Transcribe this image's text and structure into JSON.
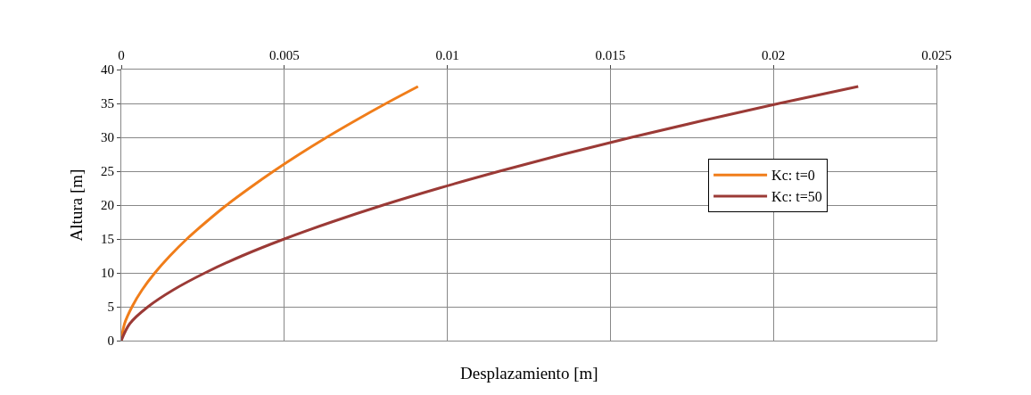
{
  "chart_data": {
    "type": "line",
    "xlabel": "Desplazamiento [m]",
    "ylabel": "Altura [m]",
    "xlim": [
      0,
      0.025
    ],
    "xticks": [
      0,
      0.005,
      0.01,
      0.015,
      0.02,
      0.025
    ],
    "ylim": [
      0,
      40
    ],
    "yticks": [
      0,
      5,
      10,
      15,
      20,
      25,
      30,
      35,
      40
    ],
    "grid": true,
    "legend": "right",
    "marker": "none",
    "line_style": "solid",
    "series": [
      {
        "name": "Kc: t=0",
        "color": "#f07d1a",
        "x": [
          0,
          0.0001,
          0.00033,
          0.00064,
          0.00103,
          0.00149,
          0.00201,
          0.0026,
          0.00323,
          0.00393,
          0.00467,
          0.00546,
          0.0063,
          0.00719,
          0.00812,
          0.0091
        ],
        "values": [
          0,
          2.5,
          5,
          7.5,
          10,
          12.5,
          15,
          17.5,
          20,
          22.5,
          25,
          27.5,
          30,
          32.5,
          35,
          37.5
        ]
      },
      {
        "name": "Kc: t=50",
        "color": "#9b3a36",
        "x": [
          0,
          0.00026,
          0.00082,
          0.0016,
          0.00257,
          0.0037,
          0.005,
          0.00645,
          0.00803,
          0.00975,
          0.0116,
          0.01356,
          0.01565,
          0.01786,
          0.02017,
          0.0226
        ],
        "values": [
          0,
          2.5,
          5,
          7.5,
          10,
          12.5,
          15,
          17.5,
          20,
          22.5,
          25,
          27.5,
          30,
          32.5,
          35,
          37.5
        ]
      }
    ]
  }
}
